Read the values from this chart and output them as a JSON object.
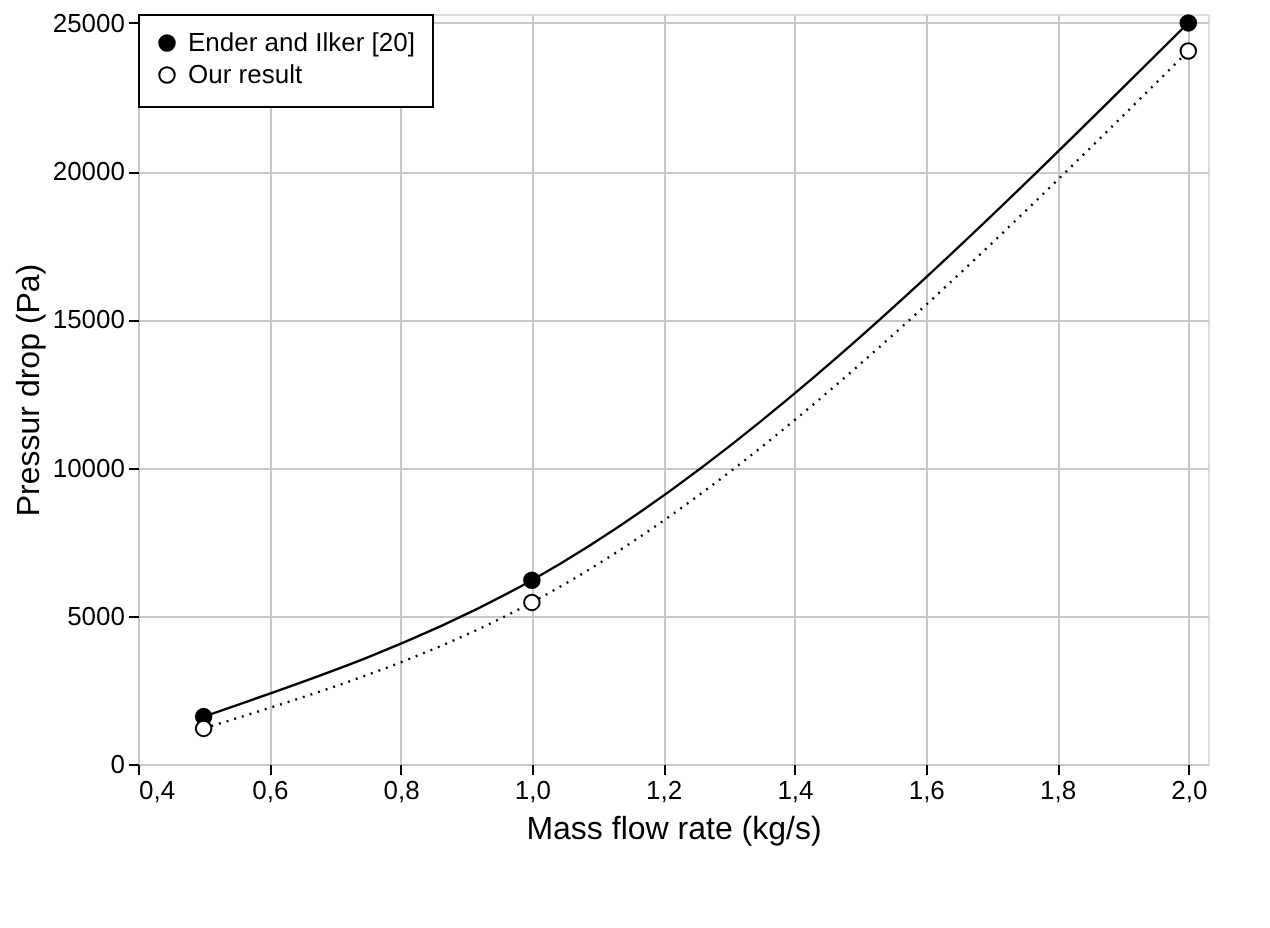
{
  "chart_data": {
    "type": "line",
    "xlabel": "Mass flow rate (kg/s)",
    "ylabel": "Pressur drop (Pa)",
    "x": [
      0.5,
      1.0,
      2.0
    ],
    "series": [
      {
        "name": "Ender and Ilker [20]",
        "color": "#000000",
        "values": [
          1600,
          6200,
          25000
        ],
        "line_style": "solid",
        "marker": "circle"
      },
      {
        "name": "Our result",
        "color": "#000000",
        "values": [
          1200,
          5450,
          24050
        ],
        "line_style": "dotted",
        "marker": "circle"
      }
    ],
    "xlim": [
      0.4,
      2.03
    ],
    "ylim": [
      0,
      25300
    ],
    "xticks": [
      {
        "value": 0.4,
        "label": "0,4"
      },
      {
        "value": 0.6,
        "label": "0,6"
      },
      {
        "value": 0.8,
        "label": "0,8"
      },
      {
        "value": 1.0,
        "label": "1,0"
      },
      {
        "value": 1.2,
        "label": "1,2"
      },
      {
        "value": 1.4,
        "label": "1,4"
      },
      {
        "value": 1.6,
        "label": "1,6"
      },
      {
        "value": 1.8,
        "label": "1,8"
      },
      {
        "value": 2.0,
        "label": "2,0"
      }
    ],
    "yticks": [
      0,
      5000,
      10000,
      15000,
      20000,
      25000
    ],
    "grid": true,
    "legend": "top left"
  }
}
